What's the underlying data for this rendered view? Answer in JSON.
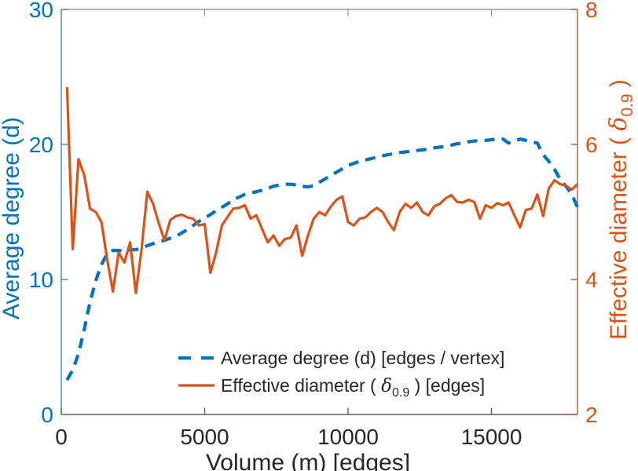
{
  "chart_data": {
    "type": "line",
    "title": "",
    "xlabel": "Volume (m) [edges]",
    "xlim": [
      0,
      18000
    ],
    "xticks": [
      0,
      5000,
      10000,
      15000
    ],
    "xtick_labels": [
      "0",
      "5000",
      "10000",
      "15000"
    ],
    "grid": false,
    "legend_position": "lower center, inside plot, no box",
    "left_axis": {
      "label": "Average degree (d)",
      "color": "#0072BD",
      "axis_line_color": "#4286bd",
      "ylim": [
        0,
        30
      ],
      "yticks": [
        0,
        10,
        20,
        30
      ],
      "ytick_labels": [
        "0",
        "10",
        "20",
        "30"
      ]
    },
    "right_axis": {
      "label_prefix": "Effective diameter (  ",
      "label_symbol": "δ",
      "label_subscript": "0.9",
      "label_suffix": "  )",
      "color": "#D95319",
      "axis_line_color": "#b05a32",
      "ylim": [
        2,
        8
      ],
      "yticks": [
        2,
        4,
        6,
        8
      ],
      "ytick_labels": [
        "2",
        "4",
        "6",
        "8"
      ]
    },
    "text_color": "#262626",
    "bottom_axis_color": "#595959",
    "top_border_color": "#999999",
    "legend": [
      {
        "prefix": "Average degree (d) [edges / vertex]",
        "symbol": "",
        "subscript": "",
        "suffix": "",
        "style": "dashed",
        "color": "#0072BD"
      },
      {
        "prefix": "Effective diameter (    ",
        "symbol": "δ",
        "subscript": "0.9",
        "suffix": " ) [edges]",
        "style": "solid",
        "color": "#D95319"
      }
    ],
    "x": [
      200,
      400,
      600,
      800,
      1000,
      1200,
      1400,
      1600,
      1800,
      2000,
      2200,
      2400,
      2600,
      2800,
      3000,
      3200,
      3400,
      3600,
      3800,
      4000,
      4200,
      4400,
      4600,
      4800,
      5000,
      5200,
      5400,
      5600,
      5800,
      6000,
      6200,
      6400,
      6600,
      6800,
      7000,
      7200,
      7400,
      7600,
      7800,
      8000,
      8200,
      8400,
      8600,
      8800,
      9000,
      9200,
      9400,
      9600,
      9800,
      10000,
      10200,
      10400,
      10600,
      10800,
      11000,
      11200,
      11400,
      11600,
      11800,
      12000,
      12200,
      12400,
      12600,
      12800,
      13000,
      13200,
      13400,
      13600,
      13800,
      14000,
      14200,
      14400,
      14600,
      14800,
      15000,
      15200,
      15400,
      15600,
      15800,
      16000,
      16200,
      16400,
      16600,
      16800,
      17000,
      17200,
      17400,
      17600,
      17800,
      18000
    ],
    "series": [
      {
        "name": "Average degree (d) [edges / vertex]",
        "axis": "left",
        "color": "#0072BD",
        "style": "dashed",
        "values": [
          2.55,
          3.3,
          4.5,
          6.3,
          8.3,
          9.9,
          11.1,
          11.9,
          12.15,
          12.15,
          12.1,
          12.2,
          12.2,
          12.35,
          12.5,
          12.65,
          12.8,
          12.9,
          13.05,
          13.2,
          13.45,
          13.7,
          14.0,
          14.3,
          14.55,
          14.8,
          15.1,
          15.35,
          15.6,
          15.9,
          16.1,
          16.3,
          16.4,
          16.5,
          16.6,
          16.75,
          16.9,
          17.0,
          17.05,
          17.05,
          17.0,
          16.9,
          16.85,
          16.95,
          17.2,
          17.45,
          17.7,
          17.95,
          18.2,
          18.45,
          18.6,
          18.75,
          18.85,
          18.95,
          19.05,
          19.15,
          19.25,
          19.3,
          19.4,
          19.45,
          19.5,
          19.55,
          19.6,
          19.65,
          19.75,
          19.8,
          19.85,
          19.95,
          20.05,
          20.1,
          20.2,
          20.25,
          20.3,
          20.3,
          20.35,
          20.4,
          20.4,
          20.1,
          20.25,
          20.4,
          20.3,
          20.2,
          20.1,
          19.25,
          18.75,
          18.15,
          17.4,
          16.9,
          16.3,
          15.35
        ]
      },
      {
        "name": "Effective diameter ( δ 0.9 ) [edges]",
        "axis": "right",
        "color": "#D95319",
        "style": "solid",
        "values": [
          6.85,
          4.45,
          5.78,
          5.55,
          5.05,
          5.0,
          4.85,
          4.3,
          3.82,
          4.4,
          4.25,
          4.55,
          3.8,
          4.45,
          5.3,
          5.12,
          4.83,
          4.58,
          4.88,
          4.94,
          4.96,
          4.92,
          4.9,
          4.8,
          4.82,
          4.1,
          4.4,
          4.8,
          4.93,
          5.05,
          5.06,
          5.1,
          4.9,
          4.95,
          4.75,
          4.55,
          4.65,
          4.5,
          4.6,
          4.62,
          4.8,
          4.35,
          4.65,
          4.9,
          5.0,
          4.95,
          5.08,
          5.18,
          5.23,
          4.85,
          4.8,
          4.9,
          4.92,
          5.0,
          5.06,
          5.0,
          4.85,
          4.73,
          5.0,
          5.12,
          5.06,
          5.14,
          5.0,
          4.95,
          5.08,
          5.12,
          5.2,
          5.25,
          5.15,
          5.14,
          5.18,
          5.15,
          4.9,
          5.1,
          5.06,
          5.13,
          5.1,
          5.14,
          4.95,
          4.77,
          5.03,
          5.05,
          5.26,
          4.94,
          5.35,
          5.47,
          5.41,
          5.39,
          5.33,
          5.41
        ]
      }
    ]
  }
}
